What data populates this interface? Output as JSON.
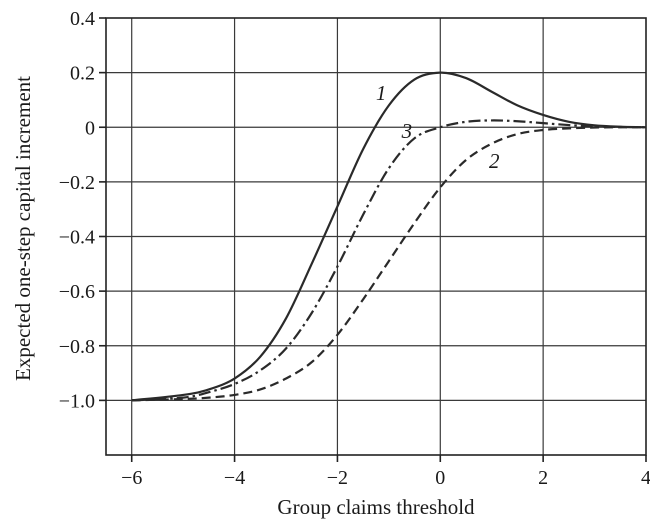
{
  "chart_data": {
    "type": "line",
    "title": "",
    "xlabel": "Group claims threshold",
    "ylabel": "Expected one-step capital increment",
    "xlim": [
      -6.5,
      4
    ],
    "ylim": [
      -1.2,
      0.4
    ],
    "grid": true,
    "x_ticks": [
      -6,
      -4,
      -2,
      0,
      2,
      4
    ],
    "x_tick_labels": [
      "−6",
      "−4",
      "−2",
      "0",
      "2",
      "4"
    ],
    "y_ticks": [
      0.4,
      0.2,
      0,
      -0.2,
      -0.4,
      -0.6,
      -0.8,
      -1.0
    ],
    "y_tick_labels": [
      "0.4",
      "0.2",
      "0",
      "−0.2",
      "−0.4",
      "−0.6",
      "−0.8",
      "−1.0"
    ],
    "series": [
      {
        "name": "1",
        "style": "solid",
        "label_at": [
          -1.15,
          0.1
        ],
        "x": [
          -6,
          -5,
          -4.5,
          -4,
          -3.5,
          -3,
          -2.5,
          -2,
          -1.5,
          -1,
          -0.5,
          0,
          0.5,
          1,
          1.5,
          2,
          2.5,
          3,
          3.5,
          4
        ],
        "y": [
          -1.0,
          -0.98,
          -0.96,
          -0.92,
          -0.84,
          -0.7,
          -0.5,
          -0.29,
          -0.08,
          0.08,
          0.175,
          0.2,
          0.18,
          0.13,
          0.08,
          0.045,
          0.02,
          0.007,
          0.002,
          0.0
        ]
      },
      {
        "name": "3",
        "style": "dashdot",
        "label_at": [
          -0.65,
          -0.04
        ],
        "x": [
          -6,
          -5,
          -4.5,
          -4,
          -3.5,
          -3,
          -2.5,
          -2,
          -1.5,
          -1,
          -0.5,
          0,
          0.5,
          1,
          1.5,
          2,
          2.5,
          3,
          3.5,
          4
        ],
        "y": [
          -1.0,
          -0.99,
          -0.97,
          -0.94,
          -0.89,
          -0.81,
          -0.68,
          -0.51,
          -0.32,
          -0.15,
          -0.04,
          0.0,
          0.02,
          0.025,
          0.022,
          0.015,
          0.008,
          0.003,
          0.001,
          0.0
        ]
      },
      {
        "name": "2",
        "style": "dashed",
        "label_at": [
          1.05,
          -0.15
        ],
        "x": [
          -6,
          -5,
          -4.5,
          -4,
          -3.5,
          -3,
          -2.5,
          -2,
          -1.5,
          -1,
          -0.5,
          0,
          0.5,
          1,
          1.5,
          2,
          2.5,
          3,
          3.5,
          4
        ],
        "y": [
          -1.0,
          -0.995,
          -0.99,
          -0.98,
          -0.96,
          -0.92,
          -0.86,
          -0.76,
          -0.63,
          -0.49,
          -0.35,
          -0.22,
          -0.12,
          -0.06,
          -0.025,
          -0.01,
          -0.004,
          -0.001,
          0.0,
          0.0
        ]
      }
    ]
  }
}
